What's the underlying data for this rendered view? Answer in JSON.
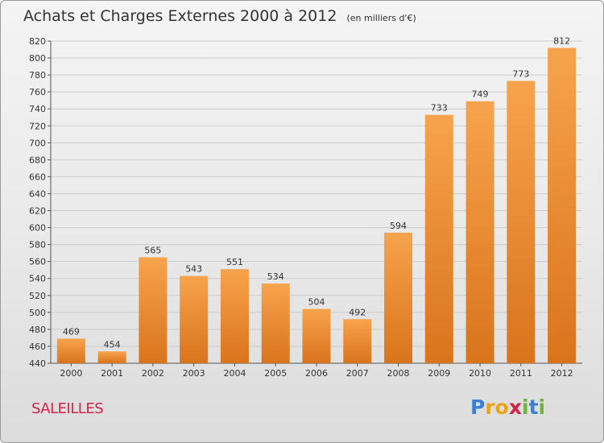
{
  "title": "Achats et Charges Externes 2000 à 2012",
  "subtitle": "(en milliers d'€)",
  "town": "SALEILLES",
  "logo": {
    "letters": [
      "P",
      "r",
      "o",
      "x",
      "i",
      "t",
      "i"
    ],
    "colors": [
      "#3a7fd0",
      "#e8a41e",
      "#e8a41e",
      "#d4214a",
      "#6cb33f",
      "#3a7fd0",
      "#6cb33f"
    ]
  },
  "colors": {
    "bar_light": "#f7a34d",
    "bar_dark": "#d9741c",
    "grid": "#cccccc"
  },
  "chart_data": {
    "type": "bar",
    "categories": [
      "2000",
      "2001",
      "2002",
      "2003",
      "2004",
      "2005",
      "2006",
      "2007",
      "2008",
      "2009",
      "2010",
      "2011",
      "2012"
    ],
    "values": [
      469,
      454,
      565,
      543,
      551,
      534,
      504,
      492,
      594,
      733,
      749,
      773,
      812
    ],
    "ylim": [
      440,
      820
    ],
    "yticks": [
      440,
      460,
      480,
      500,
      520,
      540,
      560,
      580,
      600,
      620,
      640,
      660,
      680,
      700,
      720,
      740,
      760,
      780,
      800,
      820
    ],
    "grid": true
  }
}
